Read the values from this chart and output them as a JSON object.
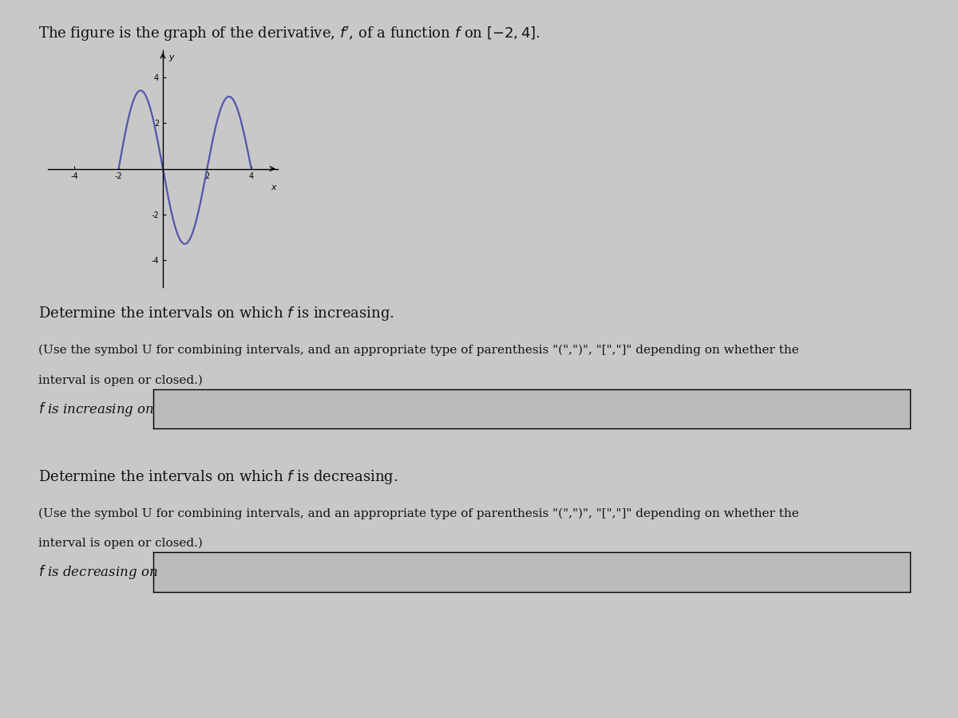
{
  "title_text": "The figure is the graph of the derivative, $f'$, of a function $f$ on $[-2,4]$.",
  "curve_color": "#5555aa",
  "curve_linewidth": 1.6,
  "background_color": "#c8c8c8",
  "graph_xlim": [
    -5.2,
    5.2
  ],
  "graph_ylim": [
    -5.2,
    5.2
  ],
  "x_ticks": [
    -4,
    -2,
    2,
    4
  ],
  "y_ticks": [
    -4,
    -2,
    2,
    4
  ],
  "text_color": "#111111",
  "box_color": "#bbbbbb",
  "increasing_header": "Determine the intervals on which $f$ is increasing.",
  "decreasing_header": "Determine the intervals on which $f$ is decreasing.",
  "paren_line1": "(Use the symbol U for combining intervals, and an appropriate type of parenthesis \"(\",\")\", \"[\",\"]\" depending on whether the",
  "paren_line2": "interval is open or closed.)",
  "label_increasing": "$f$ is increasing on",
  "label_decreasing": "$f$ is decreasing on"
}
